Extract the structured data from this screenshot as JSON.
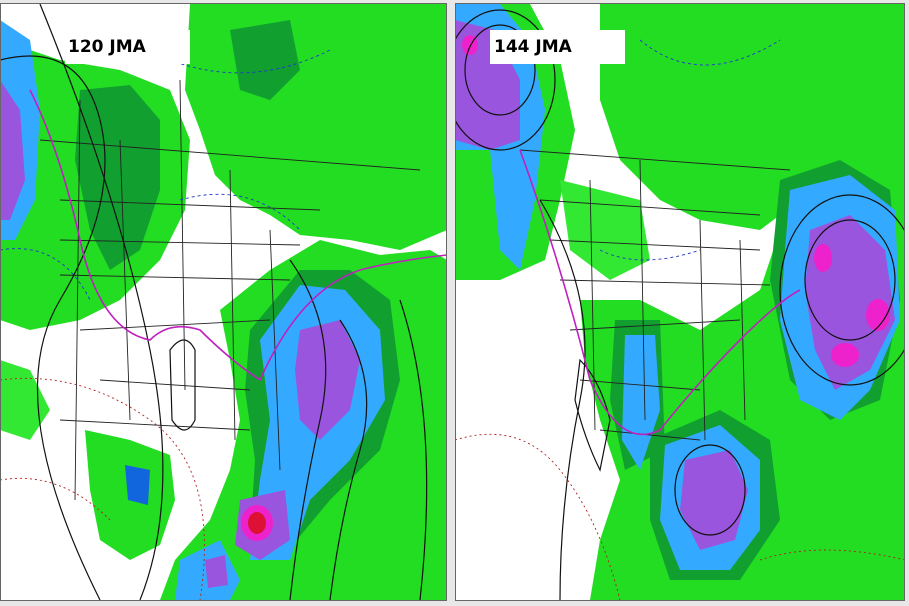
{
  "panels": [
    {
      "label": "120 JMA"
    },
    {
      "label": "144 JMA"
    }
  ]
}
